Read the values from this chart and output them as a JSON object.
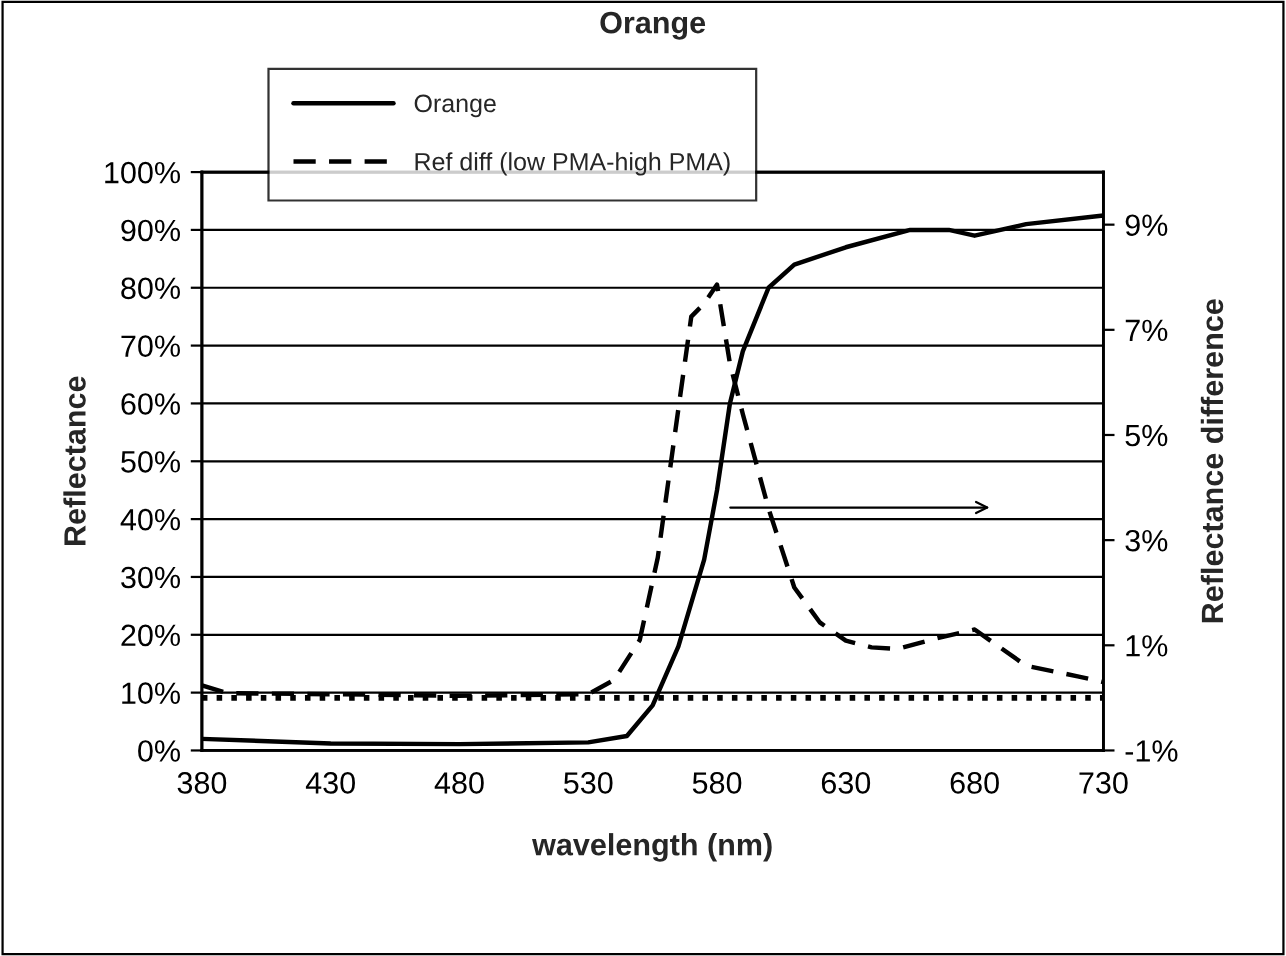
{
  "chart_data": {
    "type": "line",
    "title": "Orange",
    "xlabel": "wavelength (nm)",
    "ylabel": "Reflectance",
    "y2label": "Reflectance difference",
    "xlim": [
      380,
      730
    ],
    "xticks": [
      380,
      430,
      480,
      530,
      580,
      630,
      680,
      730
    ],
    "ylim": [
      0,
      100
    ],
    "yticks": [
      {
        "value": 0,
        "label": "0%"
      },
      {
        "value": 10,
        "label": "10%"
      },
      {
        "value": 20,
        "label": "20%"
      },
      {
        "value": 30,
        "label": "30%"
      },
      {
        "value": 40,
        "label": "40%"
      },
      {
        "value": 50,
        "label": "50%"
      },
      {
        "value": 60,
        "label": "60%"
      },
      {
        "value": 70,
        "label": "70%"
      },
      {
        "value": 80,
        "label": "80%"
      },
      {
        "value": 90,
        "label": "90%"
      },
      {
        "value": 100,
        "label": "100%"
      }
    ],
    "y2lim": [
      -1,
      10
    ],
    "y2ticks": [
      {
        "value": -1,
        "label": "-1%"
      },
      {
        "value": 1,
        "label": "1%"
      },
      {
        "value": 3,
        "label": "3%"
      },
      {
        "value": 5,
        "label": "5%"
      },
      {
        "value": 7,
        "label": "7%"
      },
      {
        "value": 9,
        "label": "9%"
      }
    ],
    "series": [
      {
        "name": "Orange",
        "color": "#000000",
        "line_style": "solid",
        "x": [
          380,
          430,
          480,
          530,
          545,
          555,
          565,
          575,
          580,
          585,
          590,
          600,
          610,
          630,
          655,
          670,
          680,
          700,
          730
        ],
        "values": [
          2.0,
          1.2,
          1.1,
          1.4,
          2.5,
          7.8,
          18,
          33,
          45,
          60,
          69,
          80,
          84,
          87,
          90,
          90,
          89,
          91,
          92.5
        ]
      },
      {
        "name": "Ref diff (low PMA-high PMA)",
        "color": "#000000",
        "line_style": "dashed",
        "axis": "y2",
        "x": [
          380,
          390,
          430,
          480,
          530,
          540,
          550,
          557,
          565,
          570,
          575,
          580,
          585,
          590,
          600,
          610,
          620,
          630,
          640,
          650,
          665,
          680,
          700,
          720,
          730
        ],
        "values": [
          0.24,
          0.09,
          0.07,
          0.04,
          0.07,
          0.34,
          1.1,
          2.67,
          5.5,
          7.25,
          7.5,
          7.86,
          6.36,
          5.4,
          3.6,
          2.1,
          1.43,
          1.09,
          0.96,
          0.93,
          1.13,
          1.3,
          0.61,
          0.41,
          0.3
        ]
      }
    ],
    "ref_lines": [
      {
        "axis": "y2",
        "value": 0,
        "color": "#000000",
        "line_style": "dotted"
      }
    ],
    "grid": "y",
    "legend": "top left",
    "marker": "none"
  }
}
